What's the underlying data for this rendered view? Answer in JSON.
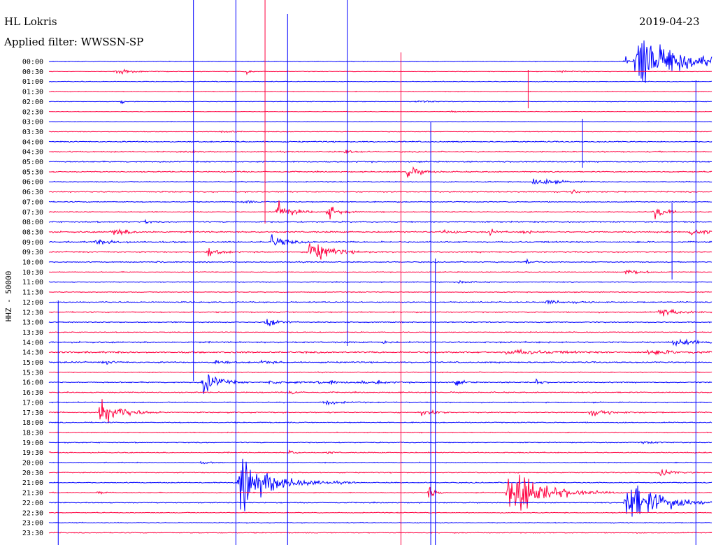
{
  "header": {
    "station": "HL Lokris",
    "filter": "Applied filter: WWSSN-SP",
    "date": "2019-04-23",
    "channel_label": "HHZ - 50000"
  },
  "chart_data": {
    "type": "helicorder",
    "title": "HL Lokris",
    "subtitle": "Applied filter: WWSSN-SP",
    "date": "2019-04-23",
    "ylabel": "HHZ - 50000",
    "row_colors": [
      "#0000ff",
      "#ff0040"
    ],
    "rows": [
      "00:00",
      "00:30",
      "01:00",
      "01:30",
      "02:00",
      "02:30",
      "03:00",
      "03:30",
      "04:00",
      "04:30",
      "05:00",
      "05:30",
      "06:00",
      "06:30",
      "07:00",
      "07:30",
      "08:00",
      "08:30",
      "09:00",
      "09:30",
      "10:00",
      "10:30",
      "11:00",
      "11:30",
      "12:00",
      "12:30",
      "13:00",
      "13:30",
      "14:00",
      "14:30",
      "15:00",
      "15:30",
      "16:00",
      "16:30",
      "17:00",
      "17:30",
      "18:00",
      "18:30",
      "19:00",
      "19:30",
      "20:00",
      "20:30",
      "21:00",
      "21:30",
      "22:00",
      "22:30",
      "23:00",
      "23:30"
    ],
    "row_noise": [
      0.8,
      0.6,
      0.8,
      0.8,
      0.7,
      0.6,
      0.6,
      0.7,
      1.3,
      1.3,
      1.3,
      1.2,
      1.1,
      1.2,
      1.1,
      1.1,
      1.4,
      1.6,
      1.6,
      1.4,
      1.1,
      0.9,
      0.9,
      0.9,
      1.3,
      1.2,
      1.1,
      1.0,
      1.6,
      1.8,
      1.5,
      1.0,
      1.3,
      1.2,
      1.2,
      1.2,
      1.1,
      1.0,
      1.0,
      1.1,
      1.0,
      1.0,
      1.1,
      1.0,
      1.0,
      0.9,
      1.0,
      1.0
    ],
    "events": [
      {
        "row": 0,
        "t": 0.87,
        "amp": 9,
        "dur": 0.004
      },
      {
        "row": 0,
        "t": 0.885,
        "amp": 60,
        "dur": 0.08
      },
      {
        "row": 1,
        "t": 0.1,
        "amp": 6,
        "dur": 0.03
      },
      {
        "row": 1,
        "t": 0.298,
        "amp": 6,
        "dur": 0.008
      },
      {
        "row": 1,
        "t": 0.765,
        "amp": 2,
        "dur": 0.03
      },
      {
        "row": 4,
        "t": 0.11,
        "amp": 8,
        "dur": 0.003
      },
      {
        "row": 4,
        "t": 0.555,
        "amp": 3,
        "dur": 0.02
      },
      {
        "row": 5,
        "t": 0.605,
        "amp": 3,
        "dur": 0.01
      },
      {
        "row": 7,
        "t": 0.26,
        "amp": 3,
        "dur": 0.02
      },
      {
        "row": 9,
        "t": 0.218,
        "amp": 3,
        "dur": 0.008
      },
      {
        "row": 9,
        "t": 0.447,
        "amp": 6,
        "dur": 0.012
      },
      {
        "row": 11,
        "t": 0.54,
        "amp": 12,
        "dur": 0.02
      },
      {
        "row": 12,
        "t": 0.73,
        "amp": 9,
        "dur": 0.03
      },
      {
        "row": 13,
        "t": 0.79,
        "amp": 5,
        "dur": 0.01
      },
      {
        "row": 14,
        "t": 0.293,
        "amp": 6,
        "dur": 0.008
      },
      {
        "row": 15,
        "t": 0.344,
        "amp": 24,
        "dur": 0.02
      },
      {
        "row": 15,
        "t": 0.421,
        "amp": 15,
        "dur": 0.015
      },
      {
        "row": 15,
        "t": 0.913,
        "amp": 18,
        "dur": 0.015
      },
      {
        "row": 16,
        "t": 0.145,
        "amp": 5,
        "dur": 0.005
      },
      {
        "row": 17,
        "t": 0.095,
        "amp": 8,
        "dur": 0.025
      },
      {
        "row": 17,
        "t": 0.595,
        "amp": 6,
        "dur": 0.005
      },
      {
        "row": 17,
        "t": 0.612,
        "amp": 5,
        "dur": 0.005
      },
      {
        "row": 17,
        "t": 0.664,
        "amp": 7,
        "dur": 0.008
      },
      {
        "row": 17,
        "t": 0.716,
        "amp": 6,
        "dur": 0.008
      },
      {
        "row": 17,
        "t": 0.967,
        "amp": 7,
        "dur": 0.03
      },
      {
        "row": 18,
        "t": 0.07,
        "amp": 4,
        "dur": 0.04
      },
      {
        "row": 18,
        "t": 0.335,
        "amp": 15,
        "dur": 0.02
      },
      {
        "row": 19,
        "t": 0.24,
        "amp": 10,
        "dur": 0.015
      },
      {
        "row": 19,
        "t": 0.393,
        "amp": 24,
        "dur": 0.03
      },
      {
        "row": 20,
        "t": 0.162,
        "amp": 5,
        "dur": 0.005
      },
      {
        "row": 20,
        "t": 0.72,
        "amp": 6,
        "dur": 0.01
      },
      {
        "row": 21,
        "t": 0.87,
        "amp": 7,
        "dur": 0.025
      },
      {
        "row": 22,
        "t": 0.615,
        "amp": 3,
        "dur": 0.02
      },
      {
        "row": 24,
        "t": 0.75,
        "amp": 4,
        "dur": 0.03
      },
      {
        "row": 25,
        "t": 0.92,
        "amp": 9,
        "dur": 0.03
      },
      {
        "row": 26,
        "t": 0.328,
        "amp": 18,
        "dur": 0.015
      },
      {
        "row": 28,
        "t": 0.505,
        "amp": 5,
        "dur": 0.005
      },
      {
        "row": 28,
        "t": 0.94,
        "amp": 5,
        "dur": 0.05
      },
      {
        "row": 29,
        "t": 0.69,
        "amp": 5,
        "dur": 0.06
      },
      {
        "row": 29,
        "t": 0.9,
        "amp": 4,
        "dur": 0.06
      },
      {
        "row": 30,
        "t": 0.082,
        "amp": 4,
        "dur": 0.015
      },
      {
        "row": 30,
        "t": 0.25,
        "amp": 6,
        "dur": 0.015
      },
      {
        "row": 30,
        "t": 0.32,
        "amp": 4,
        "dur": 0.015
      },
      {
        "row": 32,
        "t": 0.233,
        "amp": 30,
        "dur": 0.02
      },
      {
        "row": 32,
        "t": 0.33,
        "amp": 3,
        "dur": 0.04
      },
      {
        "row": 32,
        "t": 0.402,
        "amp": 6,
        "dur": 0.01
      },
      {
        "row": 32,
        "t": 0.423,
        "amp": 5,
        "dur": 0.015
      },
      {
        "row": 32,
        "t": 0.465,
        "amp": 4,
        "dur": 0.015
      },
      {
        "row": 32,
        "t": 0.495,
        "amp": 6,
        "dur": 0.01
      },
      {
        "row": 32,
        "t": 0.612,
        "amp": 8,
        "dur": 0.01
      },
      {
        "row": 32,
        "t": 0.733,
        "amp": 8,
        "dur": 0.008
      },
      {
        "row": 33,
        "t": 0.365,
        "amp": 8,
        "dur": 0.008
      },
      {
        "row": 34,
        "t": 0.415,
        "amp": 6,
        "dur": 0.02
      },
      {
        "row": 35,
        "t": 0.077,
        "amp": 30,
        "dur": 0.03
      },
      {
        "row": 35,
        "t": 0.56,
        "amp": 6,
        "dur": 0.015
      },
      {
        "row": 35,
        "t": 0.58,
        "amp": 4,
        "dur": 0.015
      },
      {
        "row": 35,
        "t": 0.815,
        "amp": 6,
        "dur": 0.03
      },
      {
        "row": 38,
        "t": 0.895,
        "amp": 3,
        "dur": 0.02
      },
      {
        "row": 39,
        "t": 0.362,
        "amp": 7,
        "dur": 0.008
      },
      {
        "row": 39,
        "t": 0.42,
        "amp": 3,
        "dur": 0.01
      },
      {
        "row": 40,
        "t": 0.23,
        "amp": 3,
        "dur": 0.01
      },
      {
        "row": 41,
        "t": 0.92,
        "amp": 9,
        "dur": 0.02
      },
      {
        "row": 42,
        "t": 0.288,
        "amp": 50,
        "dur": 0.05
      },
      {
        "row": 43,
        "t": 0.075,
        "amp": 5,
        "dur": 0.01
      },
      {
        "row": 43,
        "t": 0.573,
        "amp": 15,
        "dur": 0.01
      },
      {
        "row": 43,
        "t": 0.692,
        "amp": 55,
        "dur": 0.05
      },
      {
        "row": 44,
        "t": 0.87,
        "amp": 50,
        "dur": 0.05
      }
    ],
    "lines": [
      {
        "t": 0.218,
        "y1": 0,
        "y2": 545,
        "color": "#0000ff"
      },
      {
        "t": 0.282,
        "y1": 0,
        "y2": 780,
        "color": "#0000ff"
      },
      {
        "t": 0.326,
        "y1": 0,
        "y2": 320,
        "color": "#ff0040"
      },
      {
        "t": 0.36,
        "y1": 20,
        "y2": 780,
        "color": "#0000ff"
      },
      {
        "t": 0.45,
        "y1": 0,
        "y2": 495,
        "color": "#0000ff"
      },
      {
        "t": 0.531,
        "y1": 75,
        "y2": 780,
        "color": "#ff0040"
      },
      {
        "t": 0.576,
        "y1": 175,
        "y2": 780,
        "color": "#0000ff"
      },
      {
        "t": 0.583,
        "y1": 370,
        "y2": 780,
        "color": "#0000ff"
      },
      {
        "t": 0.723,
        "y1": 100,
        "y2": 155,
        "color": "#ff0040"
      },
      {
        "t": 0.805,
        "y1": 170,
        "y2": 240,
        "color": "#0000ff"
      },
      {
        "t": 0.94,
        "y1": 290,
        "y2": 400,
        "color": "#0000ff"
      },
      {
        "t": 0.976,
        "y1": 115,
        "y2": 780,
        "color": "#0000ff"
      },
      {
        "t": 0.014,
        "y1": 430,
        "y2": 780,
        "color": "#0000ff"
      }
    ]
  }
}
